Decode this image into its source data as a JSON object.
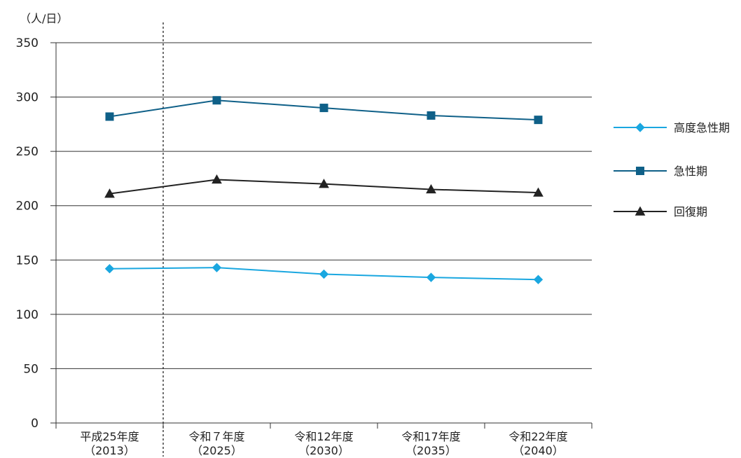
{
  "chart_data": {
    "type": "line",
    "unit_label": "（人/日）",
    "ylim": [
      0,
      350
    ],
    "yticks": [
      0,
      50,
      100,
      150,
      200,
      250,
      300,
      350
    ],
    "grid": true,
    "legend_position": "right",
    "categories": [
      [
        "平成25年度",
        "（2013）"
      ],
      [
        "令和７年度",
        "（2025）"
      ],
      [
        "令和12年度",
        "（2030）"
      ],
      [
        "令和17年度",
        "（2035）"
      ],
      [
        "令和22年度",
        "（2040）"
      ]
    ],
    "series": [
      {
        "name": "高度急性期",
        "color": "#1aa7e0",
        "marker": "diamond",
        "values": [
          142,
          143,
          137,
          134,
          132
        ]
      },
      {
        "name": "急性期",
        "color": "#0f6088",
        "marker": "square",
        "values": [
          282,
          297,
          290,
          283,
          279
        ]
      },
      {
        "name": "回復期",
        "color": "#222222",
        "marker": "triangle",
        "values": [
          211,
          224,
          220,
          215,
          212
        ]
      }
    ]
  }
}
